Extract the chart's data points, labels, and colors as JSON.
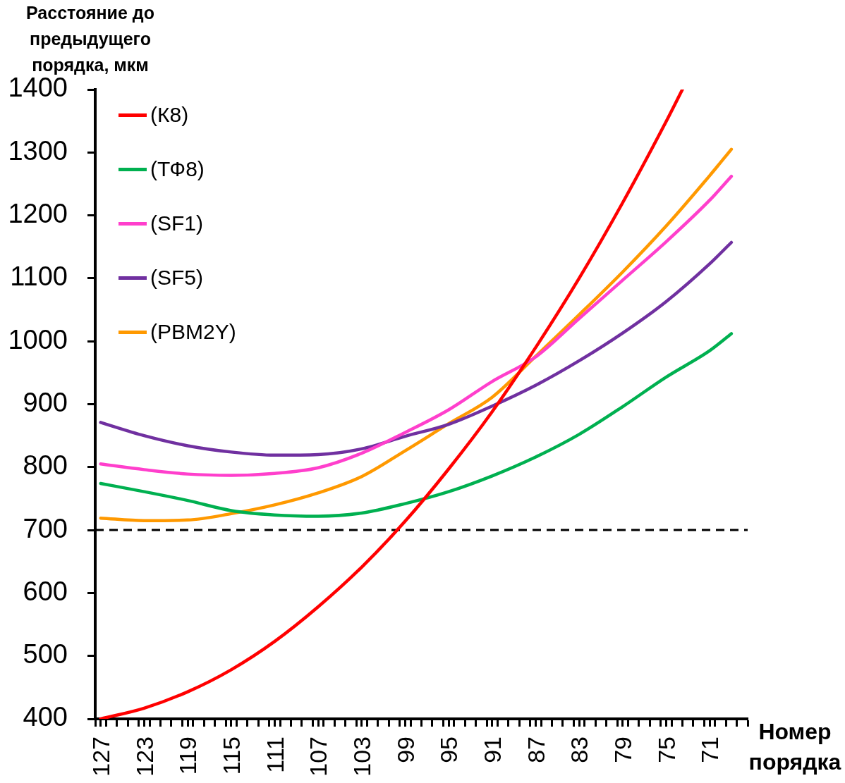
{
  "chart_data": {
    "type": "line",
    "ylabel": "Расстояние до предыдущего порядка, мкм",
    "xlabel": "Номер порядка",
    "x": [
      127,
      123,
      119,
      115,
      111,
      107,
      103,
      99,
      95,
      91,
      87,
      83,
      79,
      75,
      71,
      69
    ],
    "series": [
      {
        "name": "(К8)",
        "color": "#ff0000",
        "x": [
          127,
          123,
          119,
          115,
          111,
          107,
          103,
          99,
          95,
          91,
          87,
          83,
          79,
          75,
          73.5
        ],
        "values": [
          400,
          417,
          443,
          478,
          523,
          578,
          641,
          714,
          797,
          888,
          990,
          1100,
          1220,
          1349,
          1400
        ]
      },
      {
        "name": "(ТФ8)",
        "color": "#00b050",
        "values": [
          774,
          761,
          747,
          731,
          724,
          722,
          727,
          742,
          761,
          786,
          816,
          852,
          896,
          943,
          985,
          1012
        ]
      },
      {
        "name": "(SF1)",
        "color": "#ff3fcc",
        "values": [
          805,
          796,
          789,
          787,
          790,
          799,
          822,
          855,
          891,
          936,
          975,
          1036,
          1097,
          1158,
          1224,
          1262
        ]
      },
      {
        "name": "(SF5)",
        "color": "#7030a0",
        "values": [
          871,
          850,
          834,
          824,
          819,
          820,
          829,
          849,
          868,
          897,
          930,
          969,
          1013,
          1063,
          1123,
          1157
        ]
      },
      {
        "name": "(PBM2Y)",
        "color": "#ff9900",
        "values": [
          719,
          715,
          716,
          726,
          740,
          759,
          785,
          826,
          869,
          911,
          976,
          1042,
          1110,
          1183,
          1263,
          1305
        ]
      }
    ],
    "xlim": [
      127.5,
      67.5
    ],
    "xticks": [
      {
        "value": 127.5,
        "label": null
      },
      127,
      {
        "value": 126.5,
        "label": null
      },
      {
        "value": 125.5,
        "label": null
      },
      {
        "value": 124.5,
        "label": null
      },
      {
        "value": 123.5,
        "label": null
      },
      123,
      {
        "value": 122.5,
        "label": null
      },
      {
        "value": 121.5,
        "label": null
      },
      {
        "value": 120.5,
        "label": null
      },
      {
        "value": 119.5,
        "label": null
      },
      119,
      {
        "value": 118.5,
        "label": null
      },
      {
        "value": 117.5,
        "label": null
      },
      {
        "value": 116.5,
        "label": null
      },
      {
        "value": 115.5,
        "label": null
      },
      115,
      {
        "value": 114.5,
        "label": null
      },
      {
        "value": 113.5,
        "label": null
      },
      {
        "value": 112.5,
        "label": null
      },
      {
        "value": 111.5,
        "label": null
      },
      111,
      {
        "value": 110.5,
        "label": null
      },
      {
        "value": 109.5,
        "label": null
      },
      {
        "value": 108.5,
        "label": null
      },
      {
        "value": 107.5,
        "label": null
      },
      107,
      {
        "value": 106.5,
        "label": null
      },
      {
        "value": 105.5,
        "label": null
      },
      {
        "value": 104.5,
        "label": null
      },
      {
        "value": 103.5,
        "label": null
      },
      103,
      {
        "value": 102.5,
        "label": null
      },
      {
        "value": 101.5,
        "label": null
      },
      {
        "value": 100.5,
        "label": null
      },
      {
        "value": 99.5,
        "label": null
      },
      99,
      {
        "value": 98.5,
        "label": null
      },
      {
        "value": 97.5,
        "label": null
      },
      {
        "value": 96.5,
        "label": null
      },
      {
        "value": 95.5,
        "label": null
      },
      95,
      {
        "value": 94.5,
        "label": null
      },
      {
        "value": 93.5,
        "label": null
      },
      {
        "value": 92.5,
        "label": null
      },
      {
        "value": 91.5,
        "label": null
      },
      91,
      {
        "value": 90.5,
        "label": null
      },
      {
        "value": 89.5,
        "label": null
      },
      {
        "value": 88.5,
        "label": null
      },
      {
        "value": 87.5,
        "label": null
      },
      87,
      {
        "value": 86.5,
        "label": null
      },
      {
        "value": 85.5,
        "label": null
      },
      {
        "value": 84.5,
        "label": null
      },
      {
        "value": 83.5,
        "label": null
      },
      83,
      {
        "value": 82.5,
        "label": null
      },
      {
        "value": 81.5,
        "label": null
      },
      {
        "value": 80.5,
        "label": null
      },
      {
        "value": 79.5,
        "label": null
      },
      79,
      {
        "value": 78.5,
        "label": null
      },
      {
        "value": 77.5,
        "label": null
      },
      {
        "value": 76.5,
        "label": null
      },
      {
        "value": 75.5,
        "label": null
      },
      75,
      {
        "value": 74.5,
        "label": null
      },
      {
        "value": 73.5,
        "label": null
      },
      {
        "value": 72.5,
        "label": null
      },
      {
        "value": 71.5,
        "label": null
      },
      71,
      {
        "value": 70.5,
        "label": null
      },
      {
        "value": 69.5,
        "label": null
      },
      {
        "value": 68.5,
        "label": null
      },
      {
        "value": 67.5,
        "label": null
      }
    ],
    "ylim": [
      400,
      1400
    ],
    "yticks": [
      400,
      500,
      600,
      700,
      800,
      900,
      1000,
      1100,
      1200,
      1300,
      1400
    ],
    "ref_lines": [
      {
        "axis": "y",
        "value": 700,
        "color": "#000000",
        "line_style": "dashed"
      }
    ],
    "legend": "top left"
  }
}
